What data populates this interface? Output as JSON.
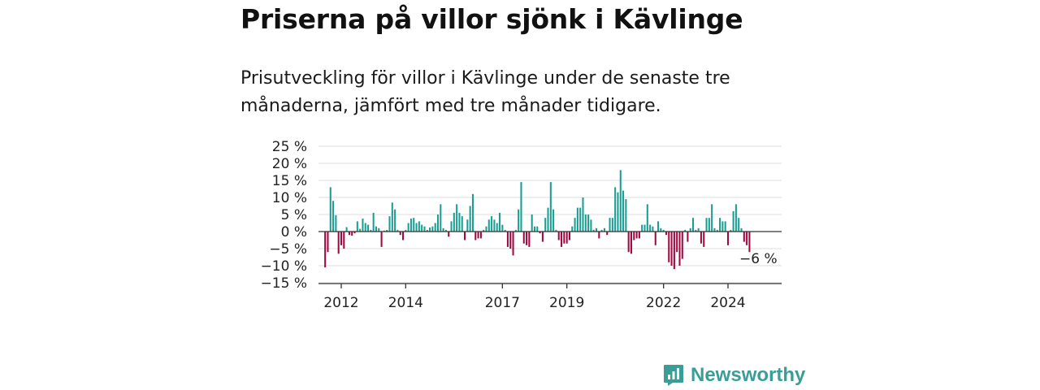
{
  "header": {
    "title": "Priserna på villor sjönk i Kävlinge",
    "subtitle": "Prisutveckling för villor i Kävlinge under de senaste tre månaderna, jämfört med tre månader tidigare."
  },
  "brand": {
    "name": "Newsworthy",
    "icon": "newsworthy-logo-icon",
    "color": "#3a9e97"
  },
  "chart_data": {
    "type": "bar",
    "title": "",
    "xlabel": "",
    "ylabel": "",
    "ylim": [
      -15,
      25
    ],
    "y_ticks": [
      25,
      20,
      15,
      10,
      5,
      0,
      -5,
      -10,
      -15
    ],
    "y_tick_labels": [
      "25 %",
      "20 %",
      "15 %",
      "10 %",
      "5 %",
      "0 %",
      "−5 %",
      "−10 %",
      "−15 %"
    ],
    "x_ticks": [
      2012,
      2014,
      2017,
      2019,
      2022,
      2024
    ],
    "x_tick_labels": [
      "2012",
      "2014",
      "2017",
      "2019",
      "2022",
      "2024"
    ],
    "x_start": 2011.5,
    "x_step": 0.08333,
    "grid": true,
    "colors": {
      "positive": "#1a9e93",
      "negative": "#a0093f"
    },
    "annotation": {
      "label": "−6 %",
      "value": -6
    },
    "values": [
      -10.5,
      -6,
      13,
      9,
      4.8,
      -6.5,
      -4,
      -5,
      1.3,
      -1,
      -1.2,
      -0.5,
      3,
      0.8,
      3.8,
      2.5,
      2,
      0.5,
      5.5,
      1.5,
      1,
      -4.5,
      0.3,
      0.5,
      4.5,
      8.5,
      6.5,
      0.5,
      -1,
      -2.5,
      0.5,
      2.5,
      3.8,
      4,
      2.5,
      3,
      2,
      1.5,
      0.5,
      1.2,
      1.5,
      2.5,
      5,
      8,
      1,
      0.5,
      -1.5,
      3,
      5.5,
      8,
      5.5,
      4.5,
      -2.5,
      3.5,
      7.5,
      11,
      -2.5,
      -2,
      -2,
      0.5,
      1.5,
      3.5,
      4.5,
      3.5,
      2.5,
      5.5,
      2,
      0.5,
      -4.5,
      -5,
      -7,
      0.5,
      6.5,
      14.5,
      -3.5,
      -4,
      -4.5,
      5,
      1.5,
      1.5,
      -0.5,
      -3,
      4,
      7,
      14.5,
      6.5,
      0.5,
      -2.5,
      -4.5,
      -3.5,
      -3.5,
      -2.5,
      1.5,
      4,
      7,
      7,
      10,
      5,
      5,
      3.5,
      0.5,
      1,
      -2,
      0.5,
      1,
      -1,
      4,
      4,
      13,
      11.5,
      18,
      12,
      9.5,
      -6,
      -6.5,
      -2.5,
      -2,
      -2,
      2,
      2,
      8,
      2,
      1.5,
      -4,
      3,
      1,
      0.5,
      -1,
      -9,
      -10,
      -11,
      -6,
      -10,
      -8,
      0.5,
      -3,
      1,
      4,
      0.5,
      1,
      -3.5,
      -4.5,
      4,
      4,
      8,
      1,
      0.5,
      4,
      3,
      3,
      -4,
      0.5,
      6,
      8,
      4,
      1,
      -3,
      -4,
      -6
    ]
  }
}
